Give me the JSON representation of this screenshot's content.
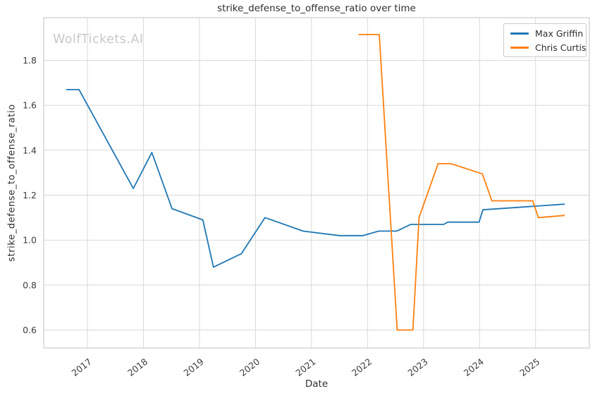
{
  "watermark": "WolfTickets.AI",
  "colors": {
    "background": "#ffffff",
    "grid": "#d9d9d9",
    "frame": "#cccccc",
    "text": "#2e2e2e",
    "tick_text": "#3c3c3c",
    "watermark": "#c9c9c9",
    "series_blue": "#1f77b4",
    "series_orange": "#ff7f0e"
  },
  "chart_data": {
    "type": "line",
    "title": "strike_defense_to_offense_ratio over time",
    "xlabel": "Date",
    "ylabel": "strike_defense_to_offense_ratio",
    "xlim": [
      2016.22,
      2025.96
    ],
    "ylim": [
      0.52,
      1.99
    ],
    "x_ticks": [
      2017,
      2018,
      2019,
      2020,
      2021,
      2022,
      2023,
      2024,
      2025
    ],
    "y_ticks": [
      0.6,
      0.8,
      1.0,
      1.2,
      1.4,
      1.6,
      1.8
    ],
    "grid": true,
    "legend_position": "upper-right",
    "series": [
      {
        "name": "Max Griffin",
        "color": "#1f77b4",
        "points": [
          [
            2016.62,
            1.67
          ],
          [
            2016.85,
            1.67
          ],
          [
            2017.82,
            1.23
          ],
          [
            2018.15,
            1.39
          ],
          [
            2018.51,
            1.14
          ],
          [
            2019.06,
            1.09
          ],
          [
            2019.25,
            0.88
          ],
          [
            2019.75,
            0.94
          ],
          [
            2020.17,
            1.1
          ],
          [
            2020.85,
            1.04
          ],
          [
            2021.5,
            1.02
          ],
          [
            2021.92,
            1.02
          ],
          [
            2022.2,
            1.04
          ],
          [
            2022.52,
            1.04
          ],
          [
            2022.77,
            1.07
          ],
          [
            2023.36,
            1.07
          ],
          [
            2023.43,
            1.08
          ],
          [
            2023.99,
            1.08
          ],
          [
            2024.06,
            1.135
          ],
          [
            2025.52,
            1.16
          ]
        ]
      },
      {
        "name": "Chris Curtis",
        "color": "#ff7f0e",
        "points": [
          [
            2021.84,
            1.915
          ],
          [
            2022.21,
            1.915
          ],
          [
            2022.53,
            0.6
          ],
          [
            2022.81,
            0.6
          ],
          [
            2022.92,
            1.1
          ],
          [
            2023.26,
            1.34
          ],
          [
            2023.49,
            1.34
          ],
          [
            2024.05,
            1.295
          ],
          [
            2024.22,
            1.175
          ],
          [
            2024.95,
            1.175
          ],
          [
            2025.05,
            1.1
          ],
          [
            2025.52,
            1.11
          ]
        ]
      }
    ]
  }
}
